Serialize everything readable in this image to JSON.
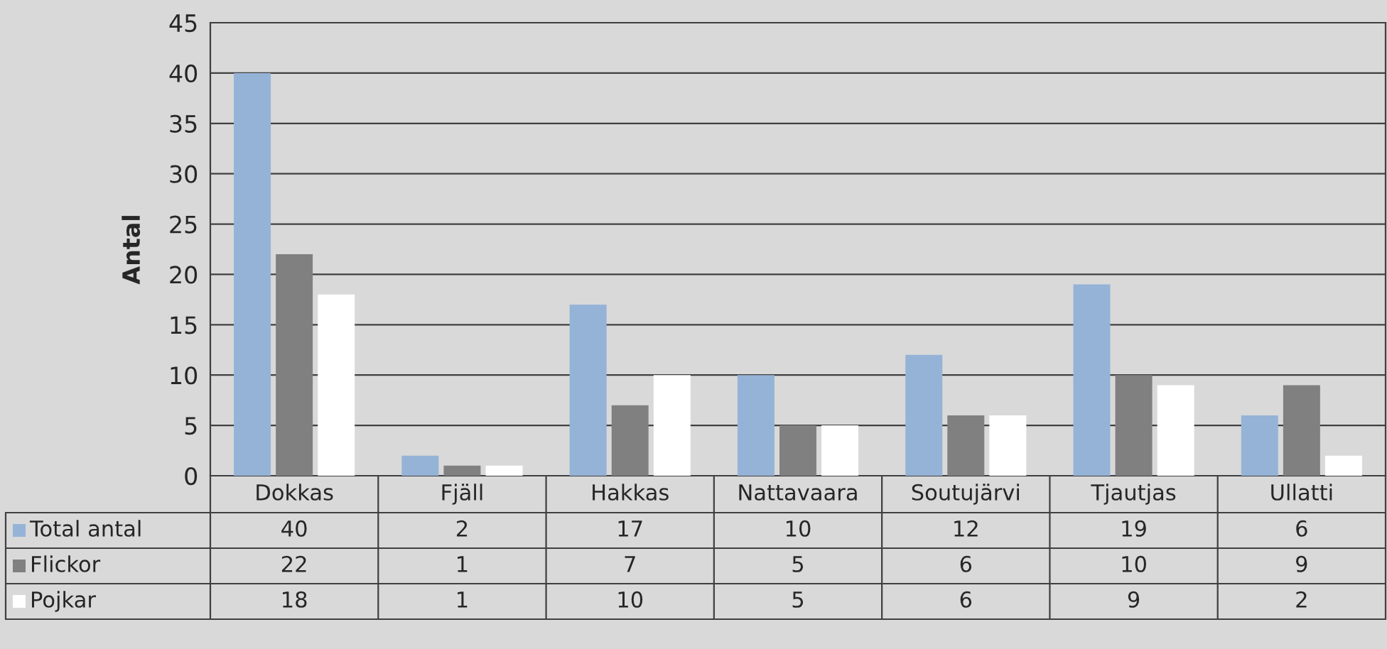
{
  "chart_data": {
    "type": "bar",
    "ylabel": "Antal",
    "categories": [
      "Dokkas",
      "Fjäll",
      "Hakkas",
      "Nattavaara",
      "Soutujärvi",
      "Tjautjas",
      "Ullatti"
    ],
    "series": [
      {
        "name": "Total antal",
        "color": "#95b3d7",
        "values": [
          40,
          2,
          17,
          10,
          12,
          19,
          6
        ]
      },
      {
        "name": "Flickor",
        "color": "#808080",
        "values": [
          22,
          1,
          7,
          5,
          6,
          10,
          9
        ]
      },
      {
        "name": "Pojkar",
        "color": "#ffffff",
        "values": [
          18,
          1,
          10,
          5,
          6,
          9,
          2
        ]
      }
    ],
    "ylim": [
      0,
      45
    ],
    "yticks": [
      0,
      5,
      10,
      15,
      20,
      25,
      30,
      35,
      40,
      45
    ],
    "grid": "y",
    "legend": "bottom",
    "data_labels": true
  }
}
